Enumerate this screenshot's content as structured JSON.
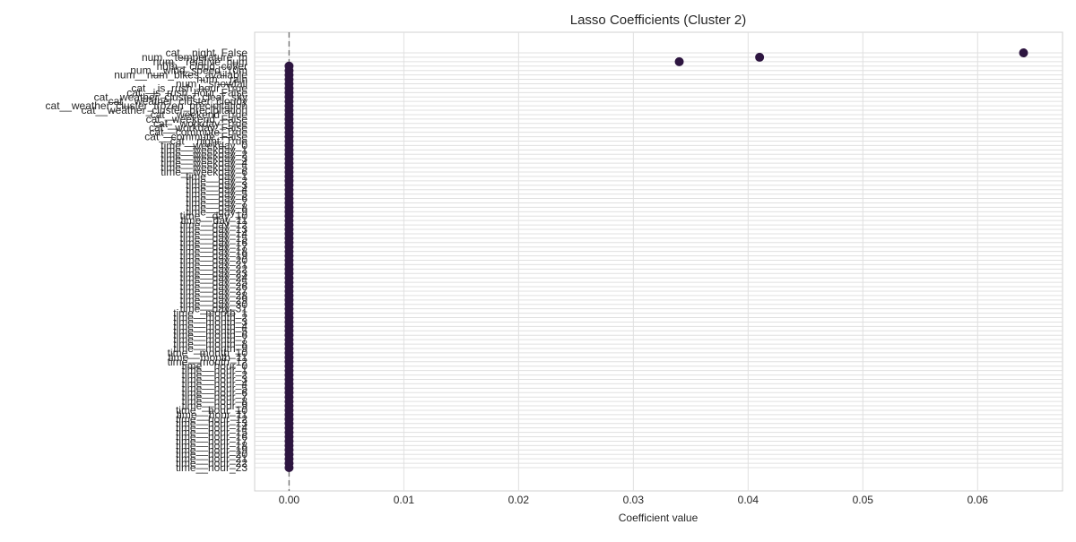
{
  "chart_data": {
    "type": "scatter",
    "title": "Lasso Coefficients (Cluster 2)",
    "xlabel": "Coefficient value",
    "ylabel": "",
    "xlim": [
      -0.003,
      0.0674
    ],
    "x_ticks": [
      0.0,
      0.01,
      0.02,
      0.03,
      0.04,
      0.05,
      0.06
    ],
    "x_tick_labels": [
      "0.00",
      "0.01",
      "0.02",
      "0.03",
      "0.04",
      "0.05",
      "0.06"
    ],
    "reference_line": {
      "x": 0,
      "style": "dashed",
      "color": "#808080"
    },
    "grid": true,
    "marker_color": "#2d1540",
    "categories": [
      "cat__night_False",
      "num__temperature_m",
      "num__relative_hum",
      "num__cloud_cover",
      "num__wind_speed_10m",
      "num__num_bikes_available",
      "num__rain",
      "num__snowfall",
      "cat__is_rush_hour_True",
      "cat__is_rush_hour_False",
      "cat__weather_cluster_clear_sky",
      "cat__weather_cluster_cloudy",
      "cat__weather_cluster_frozen_precipitation",
      "cat__weather_cluster_precipitation",
      "cat__weekend_True",
      "cat__weekend_False",
      "cat__workday_True",
      "cat__workday_False",
      "cat__commute_True",
      "cat__commute_False",
      "cat__night_True",
      "time__weekday_0",
      "time__weekday_1",
      "time__weekday_2",
      "time__weekday_3",
      "time__weekday_4",
      "time__weekday_5",
      "time__weekday_6",
      "time__day_1",
      "time__day_2",
      "time__day_3",
      "time__day_4",
      "time__day_5",
      "time__day_6",
      "time__day_7",
      "time__day_8",
      "time__day_9",
      "time__day_10",
      "time__day_11",
      "time__day_12",
      "time__day_13",
      "time__day_14",
      "time__day_15",
      "time__day_16",
      "time__day_17",
      "time__day_18",
      "time__day_19",
      "time__day_20",
      "time__day_21",
      "time__day_22",
      "time__day_23",
      "time__day_24",
      "time__day_25",
      "time__day_26",
      "time__day_27",
      "time__day_28",
      "time__day_29",
      "time__day_30",
      "time__day_31",
      "time__month_1",
      "time__month_2",
      "time__month_3",
      "time__month_4",
      "time__month_5",
      "time__month_6",
      "time__month_7",
      "time__month_8",
      "time__month_9",
      "time__month_10",
      "time__month_11",
      "time__month_12",
      "time__hour_0",
      "time__hour_1",
      "time__hour_2",
      "time__hour_3",
      "time__hour_4",
      "time__hour_5",
      "time__hour_6",
      "time__hour_7",
      "time__hour_8",
      "time__hour_9",
      "time__hour_10",
      "time__hour_11",
      "time__hour_12",
      "time__hour_13",
      "time__hour_14",
      "time__hour_15",
      "time__hour_16",
      "time__hour_17",
      "time__hour_18",
      "time__hour_19",
      "time__hour_20",
      "time__hour_21",
      "time__hour_22",
      "time__hour_23"
    ],
    "values": [
      0.064,
      0.041,
      0.034,
      0,
      0,
      0,
      0,
      0,
      0,
      0,
      0,
      0,
      0,
      0,
      0,
      0,
      0,
      0,
      0,
      0,
      0,
      0,
      0,
      0,
      0,
      0,
      0,
      0,
      0,
      0,
      0,
      0,
      0,
      0,
      0,
      0,
      0,
      0,
      0,
      0,
      0,
      0,
      0,
      0,
      0,
      0,
      0,
      0,
      0,
      0,
      0,
      0,
      0,
      0,
      0,
      0,
      0,
      0,
      0,
      0,
      0,
      0,
      0,
      0,
      0,
      0,
      0,
      0,
      0,
      0,
      0,
      0,
      0,
      0,
      0,
      0,
      0,
      0,
      0,
      0,
      0,
      0,
      0,
      0,
      0,
      0,
      0,
      0,
      0,
      0,
      0,
      0,
      0,
      0,
      0
    ]
  }
}
